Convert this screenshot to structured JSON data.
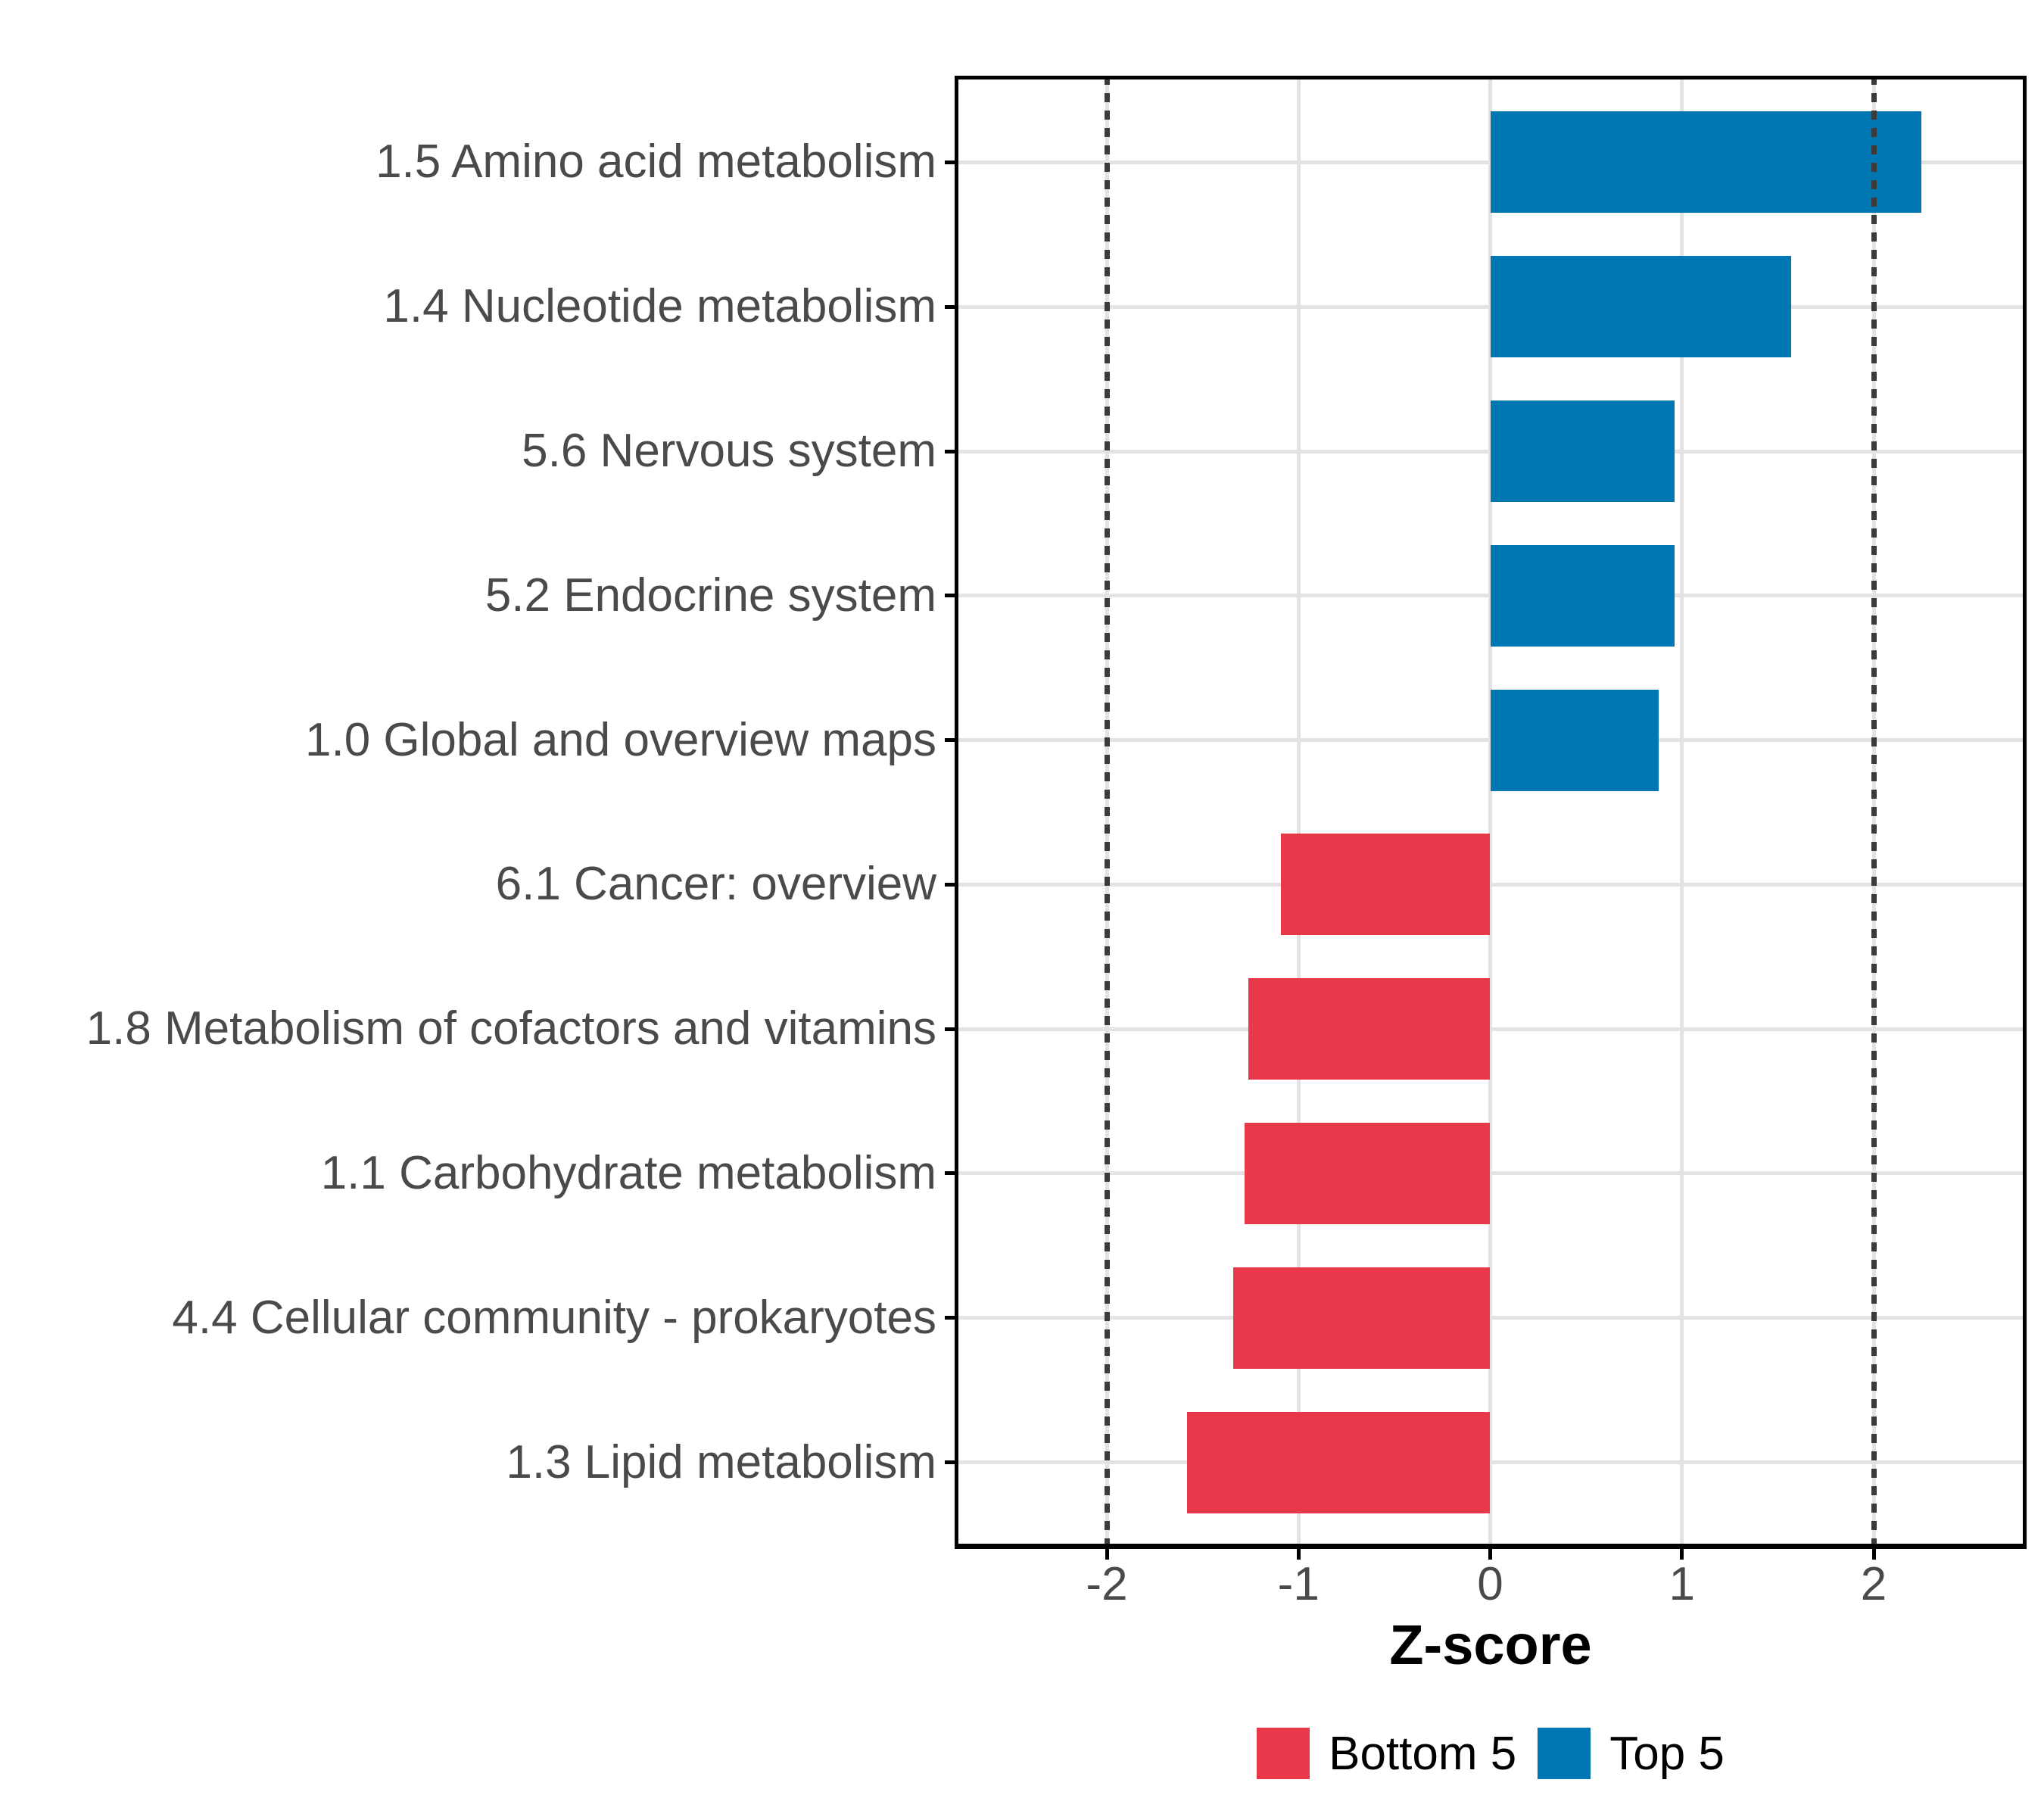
{
  "chart_data": {
    "type": "bar",
    "orientation": "horizontal",
    "title": "",
    "xlabel": "Z-score",
    "categories": [
      "1.5 Amino acid metabolism",
      "1.4 Nucleotide metabolism",
      "5.6 Nervous system",
      "5.2 Endocrine system",
      "1.0 Global and overview maps",
      "6.1 Cancer: overview",
      "1.8 Metabolism of cofactors and vitamins",
      "1.1 Carbohydrate metabolism",
      "4.4 Cellular community - prokaryotes",
      "1.3 Lipid metabolism"
    ],
    "values": [
      2.25,
      1.57,
      0.96,
      0.96,
      0.88,
      -1.09,
      -1.26,
      -1.28,
      -1.34,
      -1.58
    ],
    "groups": [
      "Top 5",
      "Top 5",
      "Top 5",
      "Top 5",
      "Top 5",
      "Bottom 5",
      "Bottom 5",
      "Bottom 5",
      "Bottom 5",
      "Bottom 5"
    ],
    "x_tick_values": [
      -2,
      -1,
      0,
      1,
      2
    ],
    "x_tick_labels": [
      "-2",
      "-1",
      "0",
      "1",
      "2"
    ],
    "xlim": [
      -2.8,
      2.8
    ],
    "reference_lines": [
      -2,
      2
    ],
    "legend": [
      {
        "label": "Bottom 5",
        "color": "#E8394A"
      },
      {
        "label": "Top 5",
        "color": "#0076B2"
      }
    ],
    "legend_position": "bottom",
    "grid": true,
    "colors": {
      "top5_bar": "#0076B2",
      "bottom5_bar": "#E8394A",
      "gridline": "#E3E3E3",
      "reference_line": "#3B3B3B",
      "axis_text": "#4A4A4A",
      "panel_border": "#000000"
    }
  }
}
